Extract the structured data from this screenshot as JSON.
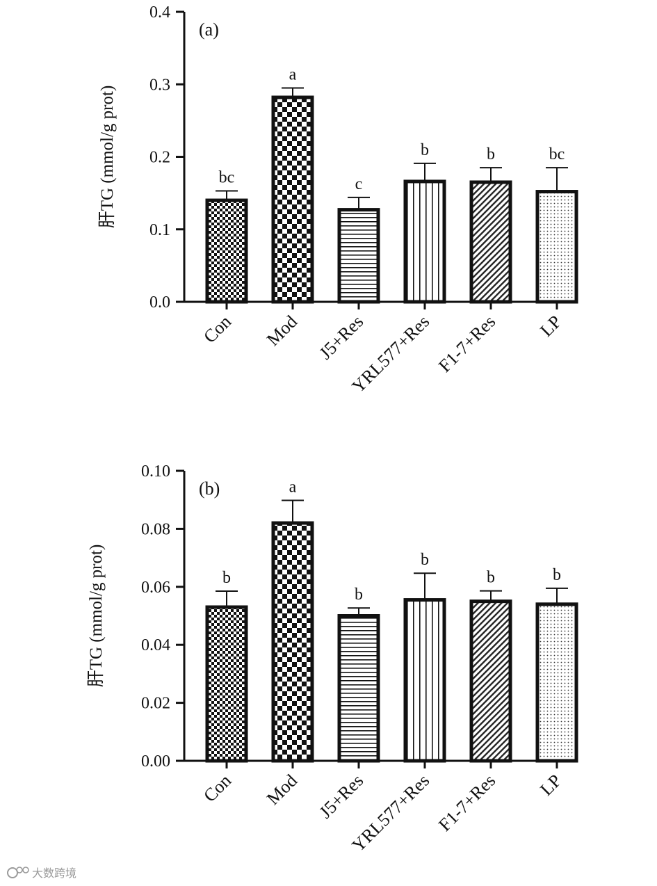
{
  "chart_data": [
    {
      "type": "bar",
      "panel_label": "(a)",
      "ylabel": "肝TG (mmol/g prot)",
      "xlabel": "",
      "ylim": [
        0,
        0.4
      ],
      "yticks": [
        "0.0",
        "0.1",
        "0.2",
        "0.3",
        "0.4"
      ],
      "categories": [
        "Con",
        "Mod",
        "J5+Res",
        "YRL577+Res",
        "F1-7+Res",
        "LP"
      ],
      "values": [
        0.14,
        0.282,
        0.127,
        0.166,
        0.165,
        0.152
      ],
      "error": [
        0.013,
        0.013,
        0.017,
        0.025,
        0.02,
        0.033
      ],
      "significance": [
        "bc",
        "a",
        "c",
        "b",
        "b",
        "bc"
      ],
      "patterns": [
        "checker-small",
        "checker-large",
        "horizontal-lines",
        "vertical-lines",
        "diagonal-lines",
        "dots"
      ]
    },
    {
      "type": "bar",
      "panel_label": "(b)",
      "ylabel": "肝TG (mmol/g prot)",
      "xlabel": "",
      "ylim": [
        0,
        0.1
      ],
      "yticks": [
        "0.00",
        "0.02",
        "0.04",
        "0.06",
        "0.08",
        "0.10"
      ],
      "categories": [
        "Con",
        "Mod",
        "J5+Res",
        "YRL577+Res",
        "F1-7+Res",
        "LP"
      ],
      "values": [
        0.053,
        0.082,
        0.05,
        0.0555,
        0.055,
        0.054
      ],
      "error": [
        0.0055,
        0.0078,
        0.0027,
        0.0092,
        0.0036,
        0.0055
      ],
      "significance": [
        "b",
        "a",
        "b",
        "b",
        "b",
        "b"
      ],
      "patterns": [
        "checker-small",
        "checker-large",
        "horizontal-lines",
        "vertical-lines",
        "diagonal-lines",
        "dots"
      ]
    }
  ],
  "watermark": {
    "text": "大数跨境",
    "icon": "logo-icon"
  }
}
